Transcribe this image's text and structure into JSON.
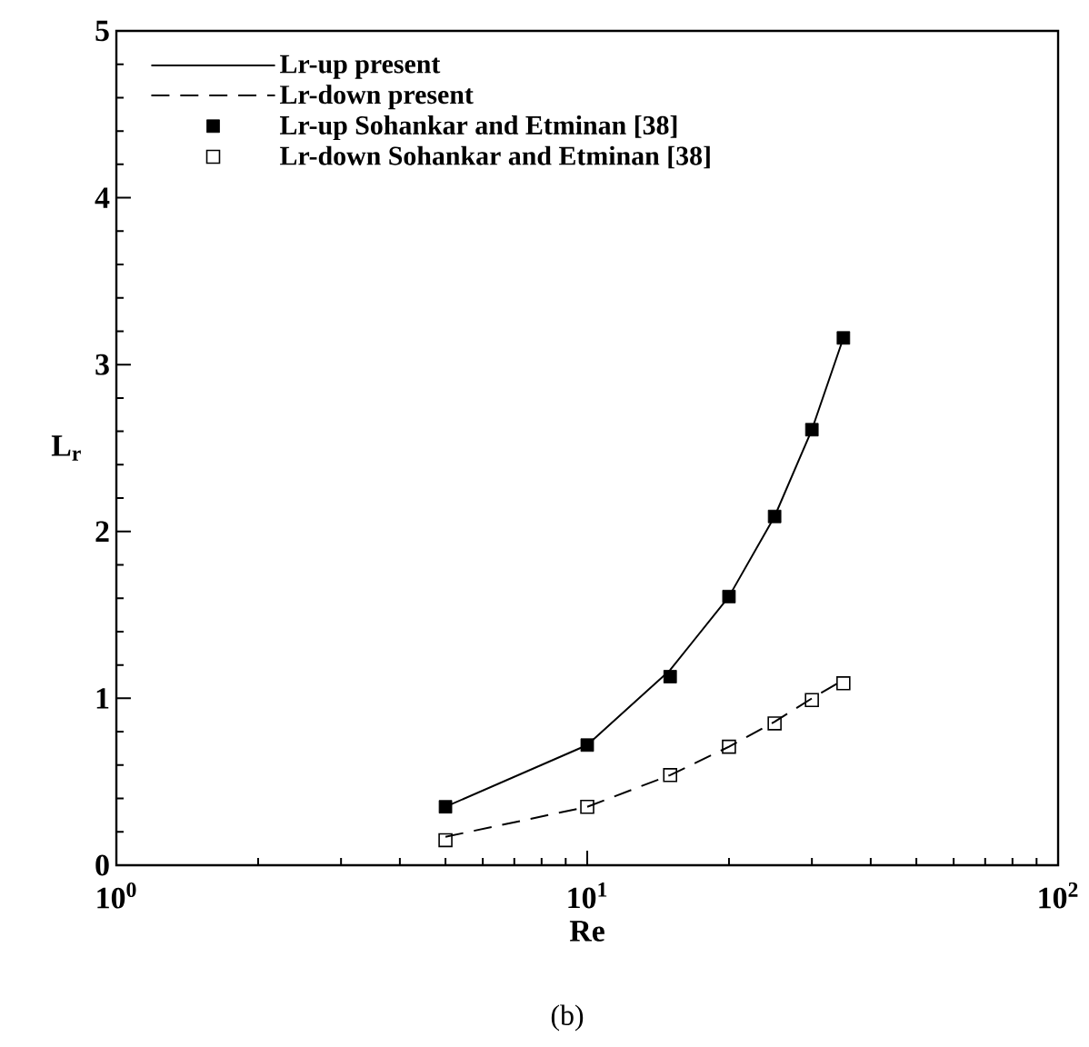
{
  "chart_data": {
    "type": "line",
    "xlabel": "Re",
    "ylabel": "L$_{r}$",
    "annotations": [
      "(b)"
    ],
    "log": "x",
    "xlim": [
      1,
      100
    ],
    "xticks": [
      {
        "value": 1,
        "label": "10$^{0}$"
      },
      {
        "value": 10,
        "label": "10$^{1}$"
      },
      {
        "value": 100,
        "label": "10$^{2}$"
      }
    ],
    "ylim": [
      0,
      5
    ],
    "yticks": [
      0,
      1,
      2,
      3,
      4,
      5
    ],
    "grid": false,
    "legend": "top left",
    "series": [
      {
        "name": "Lr-up present",
        "line_style": "solid",
        "marker": "none",
        "color": "#000000",
        "x": [
          5,
          10,
          15,
          20,
          25,
          30,
          35
        ],
        "values": [
          0.35,
          0.72,
          1.17,
          1.61,
          2.09,
          2.61,
          3.16
        ]
      },
      {
        "name": "Lr-down present",
        "line_style": "dashed",
        "marker": "none",
        "color": "#000000",
        "x": [
          5,
          10,
          15,
          20,
          25,
          30,
          35
        ],
        "values": [
          0.17,
          0.35,
          0.54,
          0.71,
          0.86,
          1.0,
          1.11
        ]
      },
      {
        "name": "Lr-up Sohankar and Etminan [38]",
        "type": "scatter",
        "marker": "square",
        "color": "#000000",
        "x": [
          5,
          10,
          15,
          20,
          25,
          30,
          35
        ],
        "values": [
          0.35,
          0.72,
          1.13,
          1.61,
          2.09,
          2.61,
          3.16
        ]
      },
      {
        "name": "Lr-down Sohankar and Etminan [38]",
        "type": "scatter",
        "marker": "square-open",
        "color": "#000000",
        "x": [
          5,
          10,
          15,
          20,
          25,
          30,
          35
        ],
        "values": [
          0.15,
          0.35,
          0.54,
          0.71,
          0.85,
          0.99,
          1.09
        ]
      }
    ]
  }
}
